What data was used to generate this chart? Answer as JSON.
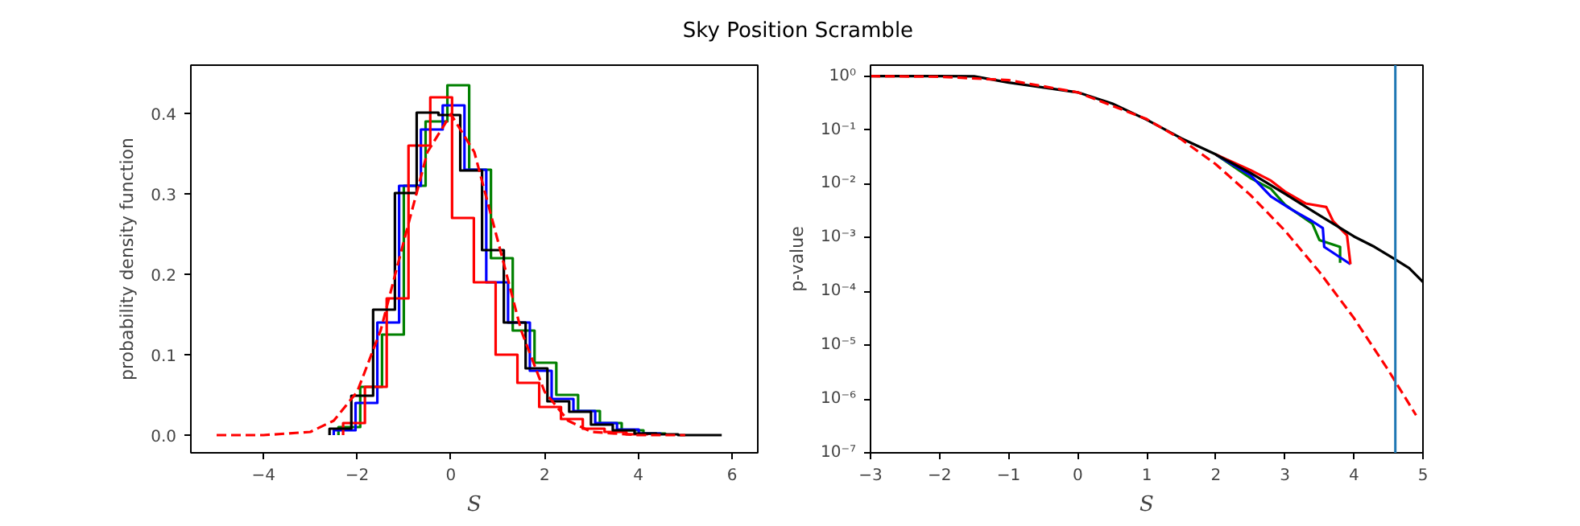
{
  "chart_data": [
    {
      "type": "histogram",
      "title": "Sky Position Scramble",
      "xlabel": "S",
      "ylabel": "probability density function",
      "xlim": [
        -5.55,
        6.55
      ],
      "ylim": [
        -0.022,
        0.46
      ],
      "xticks": [
        {
          "value": -4,
          "label": "−4"
        },
        {
          "value": -2,
          "label": "−2"
        },
        0,
        2,
        4,
        6
      ],
      "yticks": [
        {
          "value": 0,
          "label": "0.0"
        },
        0.1,
        0.2,
        0.3,
        0.4
      ],
      "grid": false,
      "series": [
        {
          "color": "#008000",
          "bins": [
            -2.4,
            -1.935,
            -1.47,
            -1.005,
            -0.54,
            -0.075,
            0.39,
            0.855,
            1.32,
            1.785,
            2.25,
            2.715,
            3.18,
            3.645,
            4.11,
            4.575
          ],
          "values": [
            0.01,
            0.06,
            0.125,
            0.31,
            0.39,
            0.435,
            0.33,
            0.22,
            0.13,
            0.09,
            0.05,
            0.03,
            0.015,
            0.006,
            0.002
          ]
        },
        {
          "color": "#0000ff",
          "bins": [
            -2.5,
            -2.035,
            -1.57,
            -1.105,
            -0.64,
            -0.175,
            0.29,
            0.755,
            1.22,
            1.685,
            2.15,
            2.615,
            3.08,
            3.545,
            4.01,
            4.475
          ],
          "values": [
            0.006,
            0.04,
            0.14,
            0.31,
            0.38,
            0.41,
            0.33,
            0.19,
            0.14,
            0.08,
            0.045,
            0.03,
            0.015,
            0.007,
            0.002
          ]
        },
        {
          "color": "#ff0000",
          "bins": [
            -2.3,
            -1.835,
            -1.37,
            -0.905,
            -0.44,
            0.025,
            0.49,
            0.955,
            1.42,
            1.885,
            2.35,
            2.815,
            3.28,
            3.745,
            4.21
          ],
          "values": [
            0.015,
            0.06,
            0.17,
            0.36,
            0.42,
            0.27,
            0.19,
            0.1,
            0.065,
            0.035,
            0.02,
            0.008,
            0.004,
            0.001
          ]
        },
        {
          "color": "#000000",
          "bins": [
            -2.59,
            -2.125,
            -1.66,
            -1.195,
            -0.73,
            -0.265,
            0.2,
            0.665,
            1.13,
            1.595,
            2.06,
            2.525,
            2.99,
            3.455,
            3.92,
            4.385,
            4.85,
            5.315,
            5.78
          ],
          "values": [
            0.008,
            0.049,
            0.156,
            0.301,
            0.401,
            0.398,
            0.329,
            0.23,
            0.14,
            0.083,
            0.042,
            0.029,
            0.013,
            0.006,
            0.002,
            0.001,
            0,
            0
          ]
        },
        {
          "type": "line",
          "line_style": "dashed",
          "color": "#ff0000",
          "x": [
            -5,
            -4,
            -3,
            -2.5,
            -2,
            -1.5,
            -1,
            -0.5,
            0,
            0.5,
            1,
            1.5,
            2,
            2.5,
            3,
            4,
            5
          ],
          "values": [
            0,
            0,
            0.004,
            0.018,
            0.054,
            0.13,
            0.242,
            0.352,
            0.399,
            0.352,
            0.242,
            0.13,
            0.054,
            0.018,
            0.004,
            0,
            0
          ]
        }
      ]
    },
    {
      "type": "line",
      "xlabel": "S",
      "ylabel": "p-value",
      "log": "y",
      "xlim": [
        -3,
        5
      ],
      "ylim": [
        1e-07,
        1.6
      ],
      "xticks": [
        {
          "value": -3,
          "label": "−3"
        },
        {
          "value": -2,
          "label": "−2"
        },
        {
          "value": -1,
          "label": "−1"
        },
        0,
        1,
        2,
        3,
        4,
        5
      ],
      "yticks": [
        {
          "value": 1,
          "label": "10⁰"
        },
        {
          "value": 0.1,
          "label": "10⁻¹"
        },
        {
          "value": 0.01,
          "label": "10⁻²"
        },
        {
          "value": 0.001,
          "label": "10⁻³"
        },
        {
          "value": 0.0001,
          "label": "10⁻⁴"
        },
        {
          "value": 1e-05,
          "label": "10⁻⁵"
        },
        {
          "value": 1e-06,
          "label": "10⁻⁶"
        },
        {
          "value": 1e-07,
          "label": "10⁻⁷"
        }
      ],
      "grid": false,
      "ref_lines": [
        {
          "axis": "x",
          "value": 4.6,
          "color": "#1f77b4"
        }
      ],
      "series": [
        {
          "color": "#008000",
          "x": [
            2,
            2.5,
            2.8,
            3.0,
            3.4,
            3.5,
            3.8,
            3.8
          ],
          "values": [
            0.035,
            0.0128,
            0.008,
            0.0041,
            0.0018,
            0.0009,
            0.00067,
            0.00034
          ]
        },
        {
          "color": "#0000ff",
          "x": [
            2,
            2.5,
            2.8,
            3.1,
            3.4,
            3.55,
            3.57,
            3.95
          ],
          "values": [
            0.035,
            0.0145,
            0.0058,
            0.0033,
            0.002,
            0.0015,
            0.00067,
            0.00032
          ]
        },
        {
          "color": "#ff0000",
          "x": [
            2,
            2.5,
            2.8,
            3.0,
            3.3,
            3.6,
            3.7,
            3.9,
            3.95
          ],
          "values": [
            0.035,
            0.018,
            0.0114,
            0.0072,
            0.0043,
            0.0037,
            0.002,
            0.0011,
            0.00032
          ]
        },
        {
          "color": "#000000",
          "x": [
            -3,
            -2,
            -1.5,
            -1,
            0,
            0.5,
            1,
            1.5,
            2,
            2.5,
            3,
            3.5,
            4,
            4.3,
            4.6,
            4.8,
            5
          ],
          "values": [
            1,
            1,
            0.99,
            0.76,
            0.5,
            0.31,
            0.155,
            0.07,
            0.035,
            0.016,
            0.0065,
            0.0026,
            0.00105,
            0.00067,
            0.00039,
            0.00027,
            0.00015
          ]
        },
        {
          "line_style": "dashed",
          "color": "#ff0000",
          "x": [
            -3,
            -2,
            -1,
            0,
            1,
            1.5,
            2,
            2.5,
            3,
            3.5,
            4,
            4.5,
            4.9
          ],
          "values": [
            0.9987,
            0.977,
            0.841,
            0.5,
            0.159,
            0.067,
            0.023,
            0.0062,
            0.00135,
            0.00023,
            3.2e-05,
            3.4e-06,
            5e-07
          ]
        }
      ]
    }
  ]
}
